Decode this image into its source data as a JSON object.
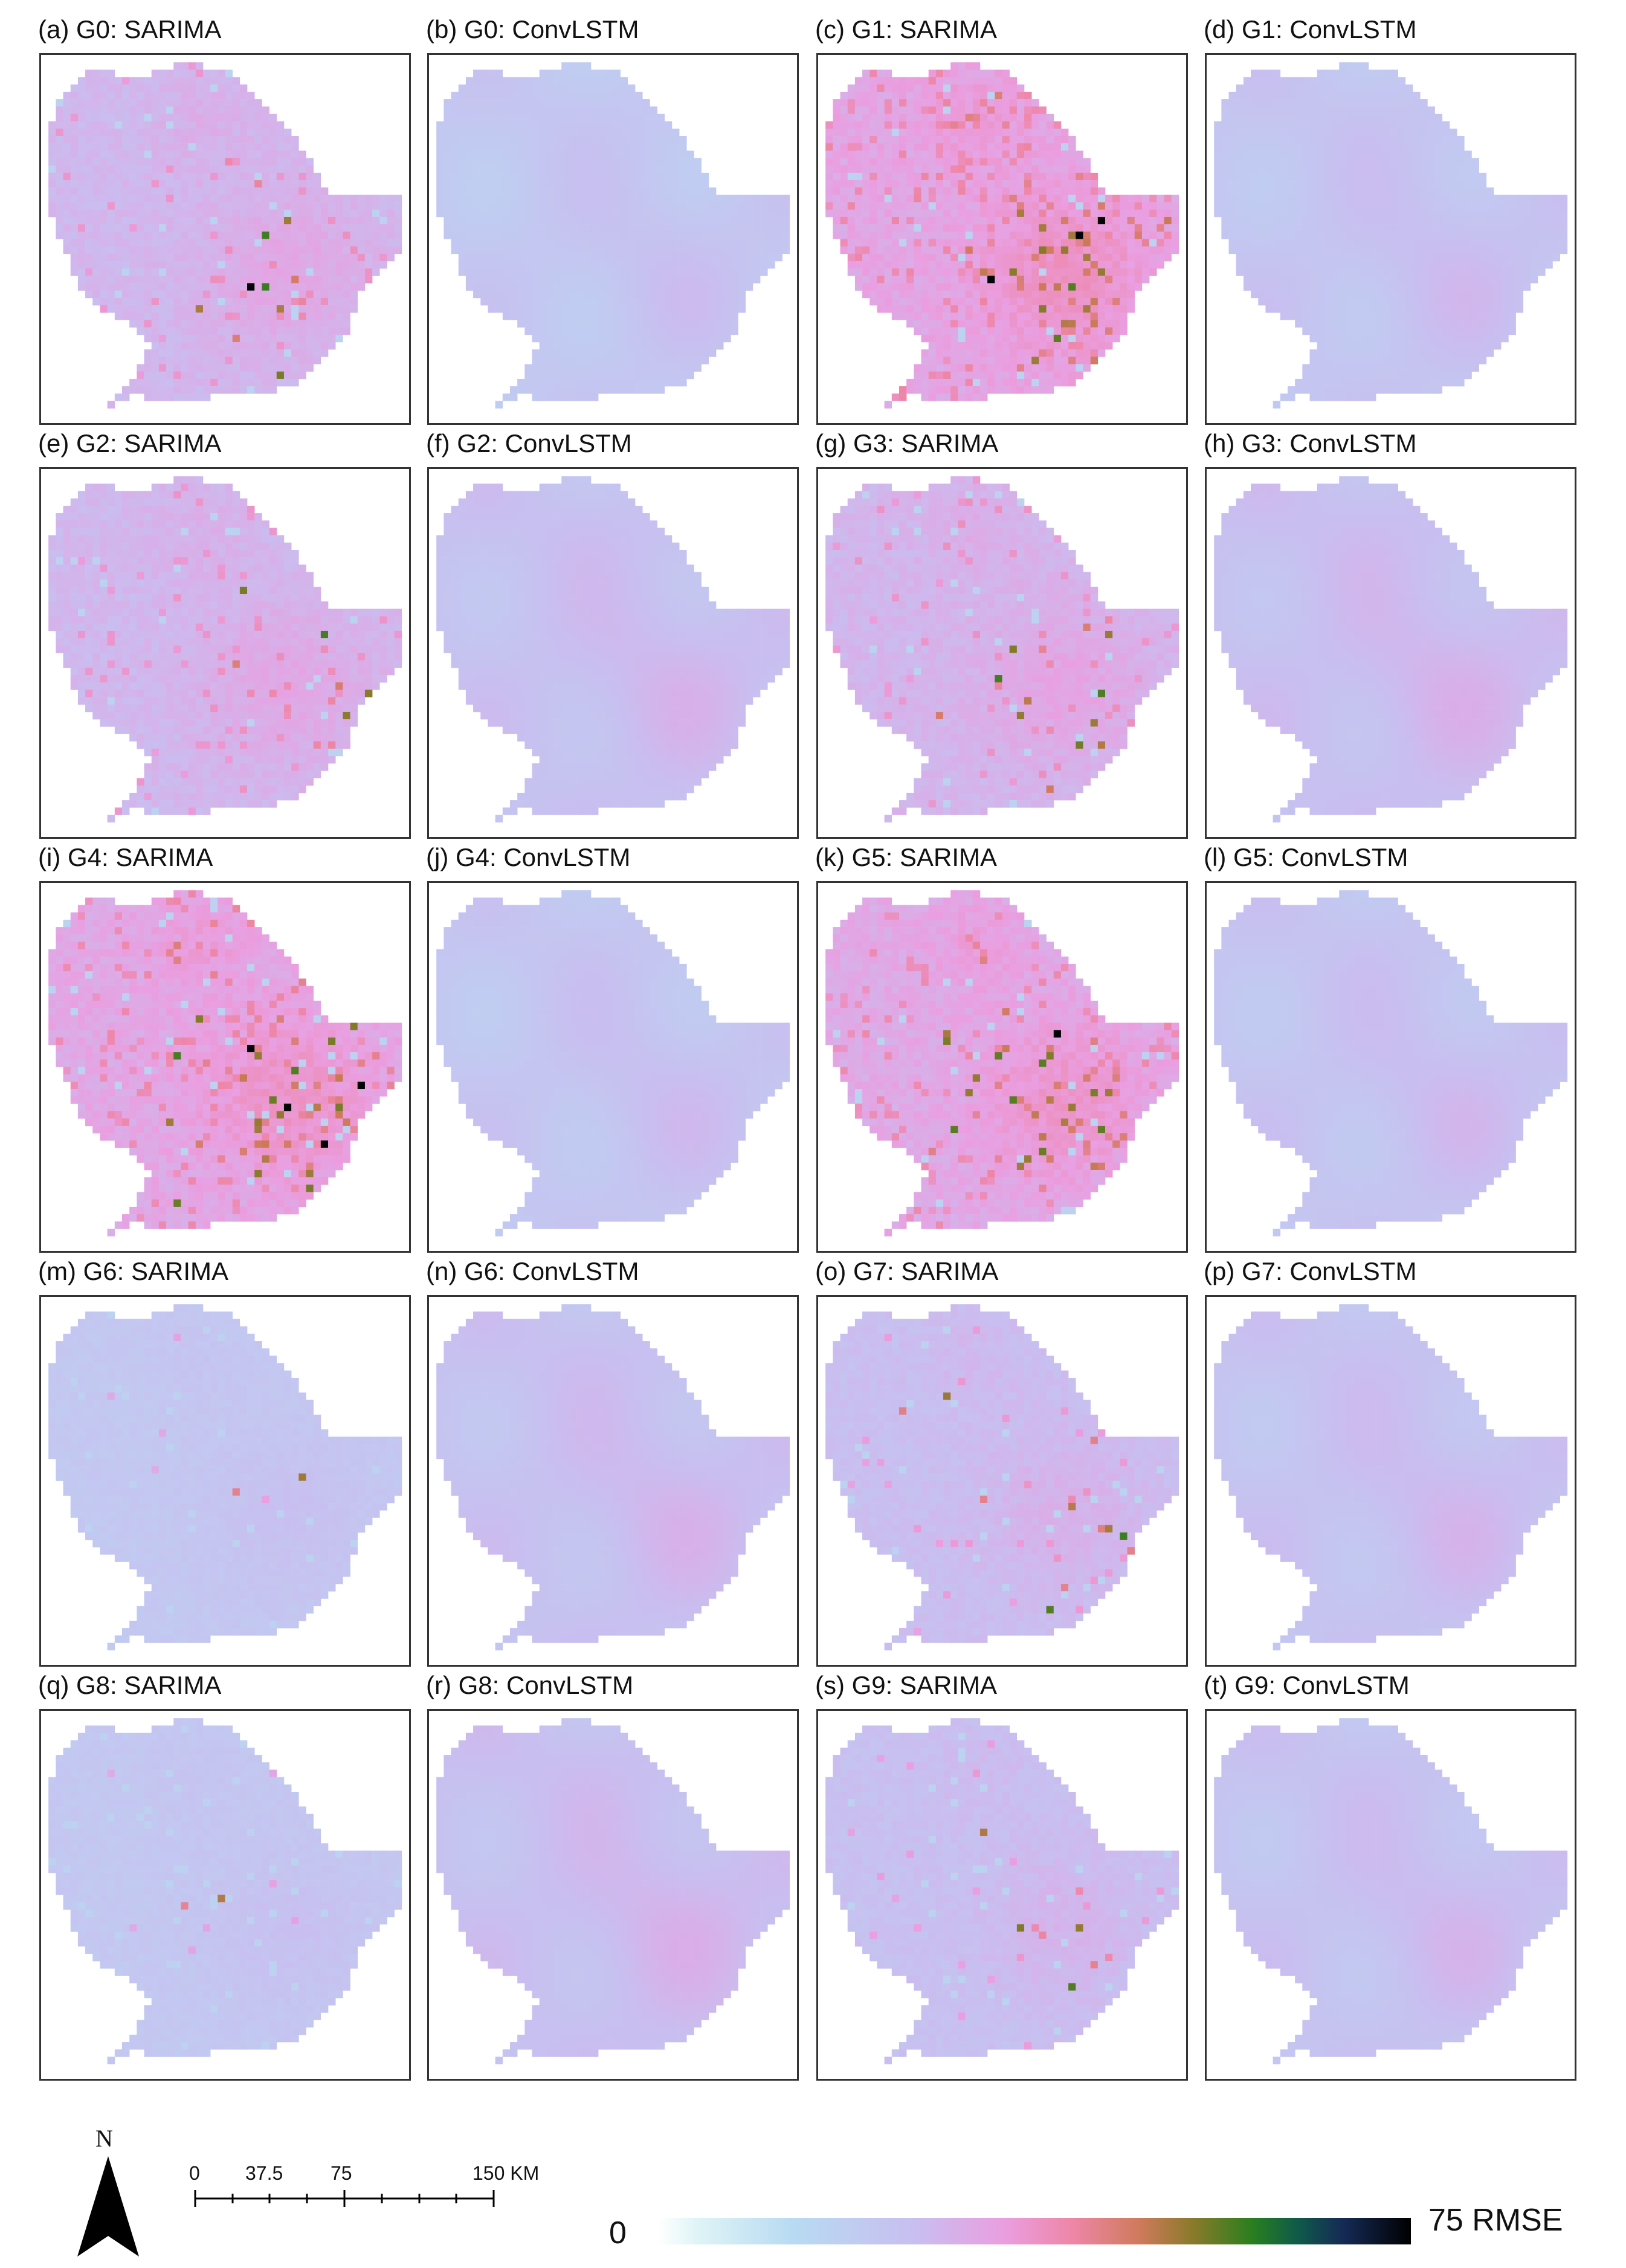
{
  "panels": [
    {
      "label": "(a) G0: SARIMA",
      "model": "SARIMA",
      "intensity": 0.42,
      "hot": 0.18,
      "dark": 1
    },
    {
      "label": "(b) G0: ConvLSTM",
      "model": "ConvLSTM",
      "intensity": 0.22,
      "hot": 0.0,
      "dark": 0
    },
    {
      "label": "(c) G1: SARIMA",
      "model": "SARIMA",
      "intensity": 0.62,
      "hot": 0.55,
      "dark": 6
    },
    {
      "label": "(d) G1: ConvLSTM",
      "model": "ConvLSTM",
      "intensity": 0.25,
      "hot": 0.0,
      "dark": 0
    },
    {
      "label": "(e) G2: SARIMA",
      "model": "SARIMA",
      "intensity": 0.42,
      "hot": 0.15,
      "dark": 0
    },
    {
      "label": "(f) G2: ConvLSTM",
      "model": "ConvLSTM",
      "intensity": 0.3,
      "hot": 0.0,
      "dark": 0
    },
    {
      "label": "(g) G3: SARIMA",
      "model": "SARIMA",
      "intensity": 0.44,
      "hot": 0.18,
      "dark": 0
    },
    {
      "label": "(h) G3: ConvLSTM",
      "model": "ConvLSTM",
      "intensity": 0.32,
      "hot": 0.0,
      "dark": 0
    },
    {
      "label": "(i) G4: SARIMA",
      "model": "SARIMA",
      "intensity": 0.6,
      "hot": 0.45,
      "dark": 4
    },
    {
      "label": "(j) G4: ConvLSTM",
      "model": "ConvLSTM",
      "intensity": 0.24,
      "hot": 0.0,
      "dark": 0
    },
    {
      "label": "(k) G5: SARIMA",
      "model": "SARIMA",
      "intensity": 0.58,
      "hot": 0.4,
      "dark": 1
    },
    {
      "label": "(l) G5: ConvLSTM",
      "model": "ConvLSTM",
      "intensity": 0.26,
      "hot": 0.0,
      "dark": 0
    },
    {
      "label": "(m) G6: SARIMA",
      "model": "SARIMA",
      "intensity": 0.22,
      "hot": 0.02,
      "dark": 0
    },
    {
      "label": "(n) G6: ConvLSTM",
      "model": "ConvLSTM",
      "intensity": 0.3,
      "hot": 0.0,
      "dark": 0
    },
    {
      "label": "(o) G7: SARIMA",
      "model": "SARIMA",
      "intensity": 0.34,
      "hot": 0.12,
      "dark": 0
    },
    {
      "label": "(p) G7: ConvLSTM",
      "model": "ConvLSTM",
      "intensity": 0.28,
      "hot": 0.0,
      "dark": 0
    },
    {
      "label": "(q) G8: SARIMA",
      "model": "SARIMA",
      "intensity": 0.22,
      "hot": 0.02,
      "dark": 0
    },
    {
      "label": "(r) G8: ConvLSTM",
      "model": "ConvLSTM",
      "intensity": 0.32,
      "hot": 0.0,
      "dark": 0
    },
    {
      "label": "(s) G9: SARIMA",
      "model": "SARIMA",
      "intensity": 0.32,
      "hot": 0.1,
      "dark": 0
    },
    {
      "label": "(t) G9: ConvLSTM",
      "model": "ConvLSTM",
      "intensity": 0.28,
      "hot": 0.0,
      "dark": 0
    }
  ],
  "north": {
    "label": "N"
  },
  "scale_bar": {
    "labels": [
      "0",
      "37.5",
      "75",
      "150 KM"
    ]
  },
  "colorbar": {
    "min_label": "0",
    "max_label": "75 RMSE",
    "colors": [
      "#ffffff",
      "#b8daf2",
      "#c8bff0",
      "#ea9ee0",
      "#ee86a8",
      "#cf7a5b",
      "#8a7a2a",
      "#287f1e",
      "#152a56",
      "#000000"
    ]
  }
}
